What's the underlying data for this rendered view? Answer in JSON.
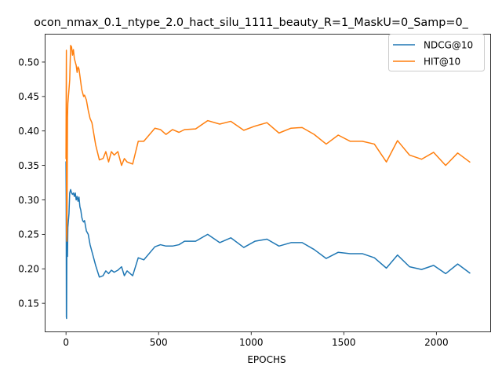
{
  "chart_data": {
    "type": "line",
    "title": "ocon_nmax_0.1_ntype_2.0_hact_silu_1111_beauty_R=1_MaskU=0_Samp=0_",
    "xlabel": "EPOCHS",
    "ylabel": "",
    "xlim": [
      -115,
      2295
    ],
    "ylim": [
      0.108,
      0.541
    ],
    "xticks": [
      0,
      500,
      1000,
      1500,
      2000
    ],
    "xtick_labels": [
      "0",
      "500",
      "1000",
      "1500",
      "2000"
    ],
    "yticks": [
      0.15,
      0.2,
      0.25,
      0.3,
      0.35,
      0.4,
      0.45,
      0.5
    ],
    "ytick_labels": [
      "0.15",
      "0.20",
      "0.25",
      "0.30",
      "0.35",
      "0.40",
      "0.45",
      "0.50"
    ],
    "legend_position": "top-right",
    "grid": false,
    "series": [
      {
        "name": "NDCG@10",
        "color": "#1f77b4",
        "x": [
          0,
          1,
          2,
          3,
          5,
          8,
          10,
          13,
          16,
          20,
          25,
          30,
          35,
          40,
          45,
          50,
          55,
          60,
          65,
          70,
          75,
          80,
          85,
          90,
          95,
          100,
          110,
          120,
          130,
          140,
          160,
          180,
          200,
          215,
          230,
          245,
          260,
          280,
          300,
          315,
          330,
          360,
          390,
          420,
          480,
          510,
          540,
          575,
          610,
          640,
          700,
          765,
          830,
          890,
          960,
          1020,
          1085,
          1150,
          1215,
          1275,
          1340,
          1405,
          1470,
          1535,
          1600,
          1665,
          1730,
          1790,
          1855,
          1920,
          1985,
          2050,
          2115,
          2180
        ],
        "y": [
          0.355,
          0.3,
          0.13,
          0.128,
          0.25,
          0.218,
          0.26,
          0.27,
          0.28,
          0.31,
          0.315,
          0.31,
          0.308,
          0.31,
          0.305,
          0.31,
          0.3,
          0.305,
          0.298,
          0.304,
          0.29,
          0.285,
          0.275,
          0.27,
          0.268,
          0.27,
          0.255,
          0.25,
          0.235,
          0.225,
          0.205,
          0.188,
          0.19,
          0.197,
          0.193,
          0.198,
          0.195,
          0.198,
          0.203,
          0.19,
          0.197,
          0.19,
          0.216,
          0.213,
          0.232,
          0.235,
          0.233,
          0.233,
          0.235,
          0.24,
          0.24,
          0.25,
          0.238,
          0.245,
          0.231,
          0.24,
          0.243,
          0.233,
          0.238,
          0.238,
          0.228,
          0.215,
          0.224,
          0.222,
          0.222,
          0.216,
          0.201,
          0.22,
          0.203,
          0.199,
          0.205,
          0.193,
          0.207,
          0.194
        ]
      },
      {
        "name": "HIT@10",
        "color": "#ff7f0e",
        "x": [
          0,
          1,
          2,
          3,
          5,
          8,
          10,
          13,
          16,
          20,
          25,
          30,
          35,
          40,
          45,
          50,
          55,
          60,
          65,
          70,
          75,
          80,
          85,
          90,
          95,
          100,
          110,
          120,
          130,
          140,
          160,
          180,
          200,
          215,
          230,
          245,
          260,
          280,
          300,
          315,
          330,
          360,
          390,
          420,
          480,
          510,
          540,
          575,
          610,
          640,
          700,
          765,
          830,
          890,
          960,
          1020,
          1085,
          1150,
          1215,
          1275,
          1340,
          1405,
          1470,
          1535,
          1600,
          1665,
          1730,
          1790,
          1855,
          1920,
          1985,
          2050,
          2115,
          2180
        ],
        "y": [
          0.36,
          0.45,
          0.517,
          0.25,
          0.24,
          0.42,
          0.44,
          0.45,
          0.46,
          0.474,
          0.524,
          0.522,
          0.51,
          0.518,
          0.505,
          0.5,
          0.495,
          0.485,
          0.493,
          0.49,
          0.48,
          0.47,
          0.46,
          0.455,
          0.45,
          0.452,
          0.445,
          0.43,
          0.418,
          0.412,
          0.38,
          0.358,
          0.36,
          0.37,
          0.355,
          0.37,
          0.365,
          0.37,
          0.35,
          0.36,
          0.355,
          0.352,
          0.385,
          0.385,
          0.404,
          0.402,
          0.395,
          0.402,
          0.398,
          0.402,
          0.403,
          0.415,
          0.41,
          0.414,
          0.401,
          0.407,
          0.412,
          0.397,
          0.404,
          0.405,
          0.395,
          0.381,
          0.394,
          0.385,
          0.385,
          0.381,
          0.355,
          0.386,
          0.365,
          0.359,
          0.369,
          0.35,
          0.368,
          0.355
        ]
      }
    ]
  }
}
